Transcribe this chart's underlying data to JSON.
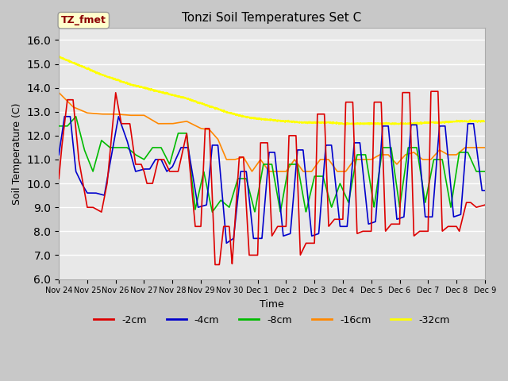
{
  "title": "Tonzi Soil Temperatures Set C",
  "xlabel": "Time",
  "ylabel": "Soil Temperature (C)",
  "ylim": [
    6.0,
    16.5
  ],
  "yticks": [
    6.0,
    7.0,
    8.0,
    9.0,
    10.0,
    11.0,
    12.0,
    13.0,
    14.0,
    15.0,
    16.0
  ],
  "colors": {
    "-2cm": "#dd0000",
    "-4cm": "#0000cc",
    "-8cm": "#00bb00",
    "-16cm": "#ff8800",
    "-32cm": "#ffff00"
  },
  "annotation_label": "TZ_fmet",
  "annotation_color": "#8b0000",
  "annotation_bg": "#ffffcc",
  "fig_bg": "#c8c8c8",
  "plot_bg": "#e8e8e8",
  "xtick_labels": [
    "Nov 24",
    "Nov 25",
    "Nov 26",
    "Nov 27",
    "Nov 28",
    "Nov 29",
    "Nov 30",
    "Dec 1",
    "Dec 2",
    "Dec 3",
    "Dec 4",
    "Dec 5",
    "Dec 6",
    "Dec 7",
    "Dec 8",
    "Dec 9"
  ],
  "legend_entries": [
    "-2cm",
    "-4cm",
    "-8cm",
    "-16cm",
    "-32cm"
  ]
}
